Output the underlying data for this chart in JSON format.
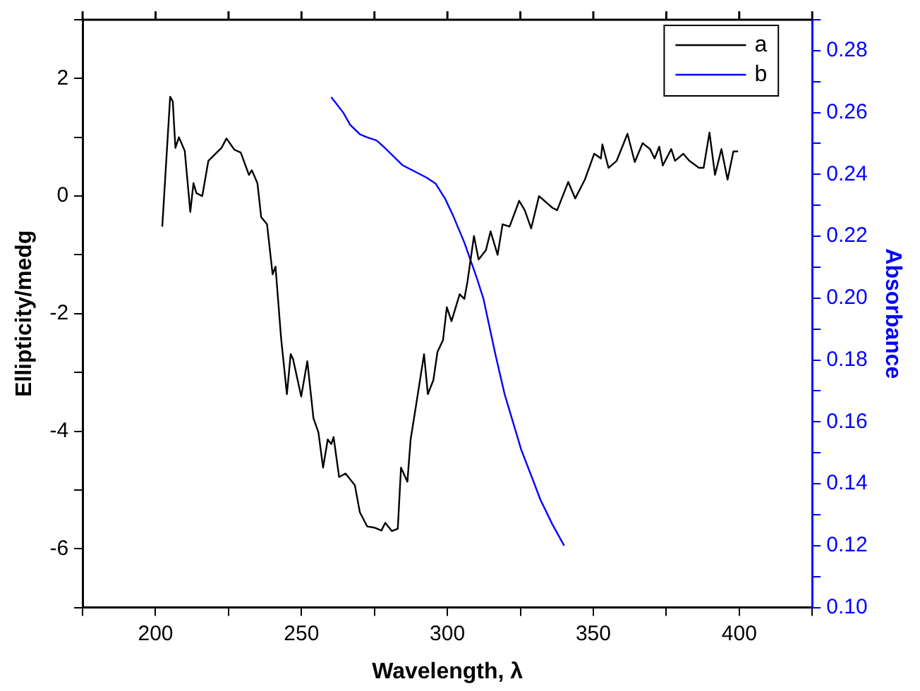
{
  "chart_data": {
    "type": "line",
    "xlabel": "Wavelength, λ",
    "ylabel": "Ellipticity/medg",
    "y2label": "Absorbance",
    "xlim": [
      175,
      425
    ],
    "xticks": [
      {
        "value": 175,
        "label": null
      },
      200,
      {
        "value": 225,
        "label": null
      },
      250,
      {
        "value": 275,
        "label": null
      },
      300,
      {
        "value": 325,
        "label": null
      },
      350,
      {
        "value": 375,
        "label": null
      },
      400,
      {
        "value": 425,
        "label": null
      }
    ],
    "ylim": [
      -7,
      3
    ],
    "yticks": [
      {
        "value": -7,
        "label": null
      },
      -6,
      {
        "value": -5,
        "label": null
      },
      -4,
      {
        "value": -3,
        "label": null
      },
      -2,
      {
        "value": -1,
        "label": null
      },
      0,
      {
        "value": 1,
        "label": null
      },
      2,
      {
        "value": 3,
        "label": null
      }
    ],
    "y2lim": [
      0.1,
      0.29
    ],
    "y2ticks": [
      {
        "value": 0.1,
        "label": "0.10"
      },
      {
        "value": 0.11,
        "label": null
      },
      0.12,
      {
        "value": 0.13,
        "label": null
      },
      0.14,
      {
        "value": 0.15,
        "label": null
      },
      0.16,
      {
        "value": 0.17,
        "label": null
      },
      0.18,
      {
        "value": 0.19,
        "label": null
      },
      {
        "value": 0.2,
        "label": "0.20"
      },
      {
        "value": 0.21,
        "label": null
      },
      0.22,
      {
        "value": 0.23,
        "label": null
      },
      0.24,
      {
        "value": 0.25,
        "label": null
      },
      0.26,
      {
        "value": 0.27,
        "label": null
      },
      0.28,
      {
        "value": 0.29,
        "label": null
      }
    ],
    "grid": false,
    "legend": "top right",
    "marker": "none",
    "line_style": "solid",
    "series": [
      {
        "name": "a",
        "color": "#000000",
        "x": [
          202.3,
          205,
          205.9,
          206.8,
          208,
          210,
          211.9,
          213,
          214,
          216,
          218.1,
          222.6,
          224.3,
          227,
          229.2,
          232,
          233,
          234.9,
          236.2,
          238.2,
          240.1,
          241.1,
          243,
          245,
          246.3,
          247.1,
          249.9,
          252,
          254.1,
          255.8,
          257.4,
          259,
          260.2,
          261,
          262.9,
          265.1,
          268.3,
          270,
          272.5,
          274.9,
          277.4,
          278.7,
          281,
          283,
          284.1,
          286.3,
          287.4,
          289.1,
          292,
          293.3,
          295.2,
          296.6,
          298.5,
          299.8,
          301.4,
          304.2,
          305.8,
          306.9,
          309.1,
          310.7,
          313.2,
          314.8,
          317.2,
          318.9,
          321.3,
          324.6,
          326.5,
          328.7,
          331.4,
          336,
          337.6,
          341.4,
          343.8,
          347.1,
          350.3,
          352.6,
          353.1,
          355.2,
          358,
          361.7,
          364.2,
          366.9,
          369.4,
          371,
          372.6,
          373.8,
          376.7,
          378,
          380.8,
          382.9,
          386.2,
          387.8,
          389.8,
          391.7,
          393.9,
          396,
          398,
          399.6
        ],
        "values": [
          -0.52,
          1.69,
          1.61,
          0.82,
          1.0,
          0.77,
          -0.27,
          0.22,
          0.05,
          0,
          0.6,
          0.82,
          0.98,
          0.79,
          0.74,
          0.36,
          0.44,
          0.22,
          -0.36,
          -0.48,
          -1.33,
          -1.2,
          -2.41,
          -3.37,
          -2.69,
          -2.77,
          -3.41,
          -2.81,
          -3.78,
          -4.02,
          -4.62,
          -4.14,
          -4.22,
          -4.1,
          -4.78,
          -4.72,
          -4.92,
          -5.38,
          -5.62,
          -5.64,
          -5.69,
          -5.56,
          -5.7,
          -5.66,
          -4.62,
          -4.86,
          -4.14,
          -3.61,
          -2.69,
          -3.37,
          -3.13,
          -2.65,
          -2.45,
          -1.89,
          -2.13,
          -1.67,
          -1.75,
          -1.45,
          -0.68,
          -1.08,
          -0.92,
          -0.6,
          -1.0,
          -0.48,
          -0.52,
          -0.08,
          -0.24,
          -0.55,
          0,
          -0.2,
          -0.24,
          0.24,
          -0.04,
          0.28,
          0.72,
          0.64,
          0.88,
          0.48,
          0.6,
          1.06,
          0.58,
          0.9,
          0.8,
          0.64,
          0.84,
          0.52,
          0.8,
          0.6,
          0.72,
          0.6,
          0.48,
          0.48,
          1.08,
          0.36,
          0.8,
          0.28,
          0.76,
          0.76
        ]
      },
      {
        "name": "b",
        "color": "#0000ff",
        "axis": "y2",
        "x": [
          260.2,
          264.3,
          266.7,
          270,
          272.4,
          275.7,
          278.1,
          284.6,
          288.7,
          292.8,
          296,
          299.3,
          301.8,
          305.8,
          309.9,
          312.3,
          316.4,
          319.6,
          325.3,
          329.4,
          331.8,
          335.9,
          340
        ],
        "values": [
          0.265,
          0.26,
          0.256,
          0.253,
          0.252,
          0.251,
          0.249,
          0.243,
          0.241,
          0.239,
          0.237,
          0.232,
          0.227,
          0.218,
          0.207,
          0.2,
          0.182,
          0.169,
          0.151,
          0.141,
          0.135,
          0.127,
          0.12
        ]
      }
    ]
  }
}
